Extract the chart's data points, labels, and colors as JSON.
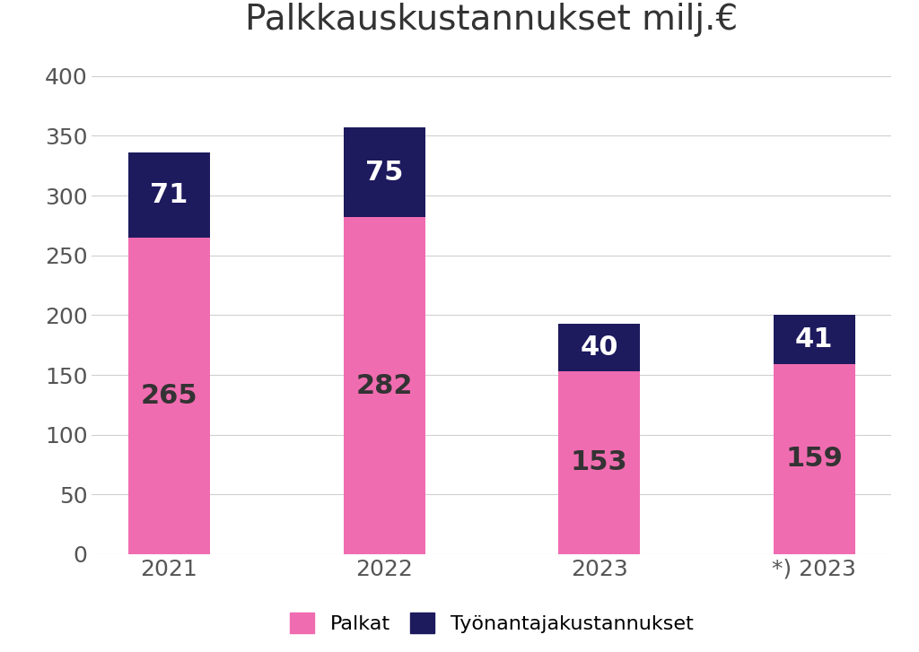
{
  "title": "Palkkauskustannukset milj.€",
  "categories": [
    "2021",
    "2022",
    "2023",
    "*) 2023"
  ],
  "palkat": [
    265,
    282,
    153,
    159
  ],
  "tyonantaja": [
    71,
    75,
    40,
    41
  ],
  "color_palkat": "#f06cb0",
  "color_tyonantaja": "#1e1a5e",
  "ylim": [
    0,
    420
  ],
  "yticks": [
    0,
    50,
    100,
    150,
    200,
    250,
    300,
    350,
    400
  ],
  "legend_palkat": "Palkat",
  "legend_tyonantaja": "Työnantajakustannukset",
  "title_fontsize": 28,
  "label_fontsize_large": 22,
  "label_fontsize_small": 20,
  "tick_fontsize": 18,
  "legend_fontsize": 16,
  "bar_width": 0.38,
  "background_color": "#ffffff",
  "grid_color": "#d0d0d0",
  "text_color_white": "#ffffff",
  "text_color_dark": "#333333"
}
